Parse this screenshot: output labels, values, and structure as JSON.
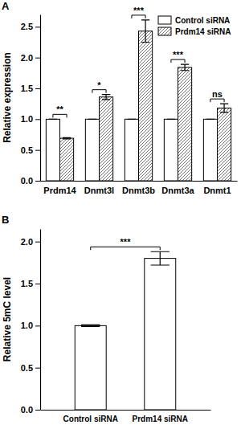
{
  "chart_data": [
    {
      "type": "bar",
      "title": "A",
      "y_label": "Relative expression",
      "categories": [
        "Prdm14",
        "Dnmt3l",
        "Dnmt3b",
        "Dnmt3a",
        "Dnmt1"
      ],
      "series": [
        {
          "name": "Control siRNA",
          "color": "#ffffff",
          "values": [
            1,
            1,
            1,
            1,
            1
          ],
          "errors": [
            0,
            0,
            0,
            0,
            0
          ]
        },
        {
          "name": "Prdm14 siRNA",
          "color": "#555555",
          "values": [
            0.69,
            1.36,
            2.43,
            1.84,
            1.18
          ],
          "errors": [
            0.01,
            0.04,
            0.18,
            0.05,
            0.07
          ]
        }
      ],
      "annotations": [
        "**",
        "*",
        "***",
        "***",
        "ns"
      ],
      "ylim": [
        0,
        2.7
      ],
      "yticks": [
        {
          "value": 0,
          "label": "0.0"
        },
        0.5,
        {
          "value": 1,
          "label": "1.0"
        },
        1.5,
        {
          "value": 2,
          "label": "2.0"
        },
        2.5
      ],
      "legend": "upper right"
    },
    {
      "type": "bar",
      "title": "B",
      "y_label": "Relative 5mC level",
      "categories": [
        "Control siRNA",
        "Prdm14 siRNA"
      ],
      "values": [
        1,
        1.8
      ],
      "errors": [
        0.01,
        0.08
      ],
      "color": "#ffffff",
      "annotations": [
        "***"
      ],
      "ylim": [
        0,
        2.15
      ],
      "yticks": [
        {
          "value": 0,
          "label": "0.0"
        },
        0.5,
        {
          "value": 1,
          "label": "1.0"
        },
        1.5,
        {
          "value": 2,
          "label": "2.0"
        }
      ]
    }
  ]
}
